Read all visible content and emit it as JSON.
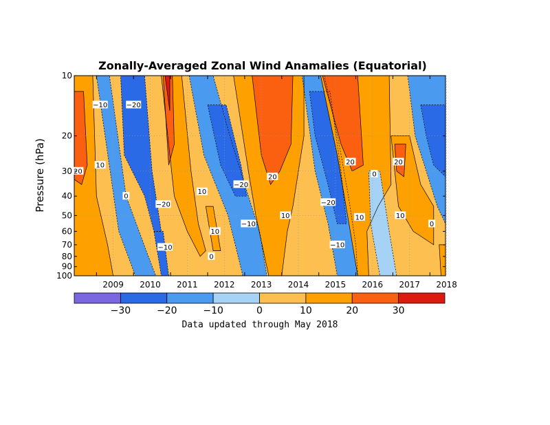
{
  "chart_data": {
    "type": "heatmap",
    "title": "Zonally-Averaged Zonal Wind Anamalies (Equatorial)",
    "xlabel": "",
    "ylabel": "Pressure (hPa)",
    "x_ticks": [
      "2009",
      "2010",
      "2011",
      "2012",
      "2013",
      "2014",
      "2015",
      "2016",
      "2017",
      "2018"
    ],
    "y_ticks": [
      "10",
      "20",
      "30",
      "40",
      "50",
      "60",
      "70",
      "80",
      "90",
      "100"
    ],
    "y_scale": "log",
    "ylim": [
      100,
      10
    ],
    "xlim": [
      "2008-06",
      "2018-05"
    ],
    "colorbar": {
      "ticks": [
        "-30",
        "-20",
        "-10",
        "0",
        "10",
        "20",
        "30"
      ],
      "levels": [
        -40,
        -30,
        -20,
        -10,
        0,
        10,
        20,
        30,
        40
      ],
      "colors": [
        "#7b68e0",
        "#2a6ae6",
        "#4a9af0",
        "#a5d2f5",
        "#fdc050",
        "#fda000",
        "#fb6010",
        "#dd1a10"
      ]
    },
    "note": "Data updated through May 2018",
    "contour_labels": [
      {
        "text": "-10",
        "year": 2009.1,
        "p": 14
      },
      {
        "text": "-20",
        "year": 2010.0,
        "p": 14
      },
      {
        "text": "20",
        "year": 2008.5,
        "p": 30
      },
      {
        "text": "10",
        "year": 2009.1,
        "p": 28
      },
      {
        "text": "0",
        "year": 2009.8,
        "p": 40
      },
      {
        "text": "-20",
        "year": 2010.8,
        "p": 44
      },
      {
        "text": "-10",
        "year": 2010.85,
        "p": 72
      },
      {
        "text": "10",
        "year": 2011.85,
        "p": 38
      },
      {
        "text": "10",
        "year": 2012.2,
        "p": 60
      },
      {
        "text": "0",
        "year": 2012.1,
        "p": 80
      },
      {
        "text": "-20",
        "year": 2012.9,
        "p": 35
      },
      {
        "text": "-10",
        "year": 2013.1,
        "p": 55
      },
      {
        "text": "20",
        "year": 2013.75,
        "p": 32
      },
      {
        "text": "10",
        "year": 2014.1,
        "p": 50
      },
      {
        "text": "-20",
        "year": 2015.25,
        "p": 43
      },
      {
        "text": "-10",
        "year": 2015.5,
        "p": 70
      },
      {
        "text": "20",
        "year": 2015.85,
        "p": 27
      },
      {
        "text": "10",
        "year": 2016.1,
        "p": 51
      },
      {
        "text": "0",
        "year": 2016.5,
        "p": 31
      },
      {
        "text": "20",
        "year": 2017.15,
        "p": 27
      },
      {
        "text": "10",
        "year": 2017.2,
        "p": 50
      },
      {
        "text": "0",
        "year": 2018.05,
        "p": 55
      }
    ]
  }
}
